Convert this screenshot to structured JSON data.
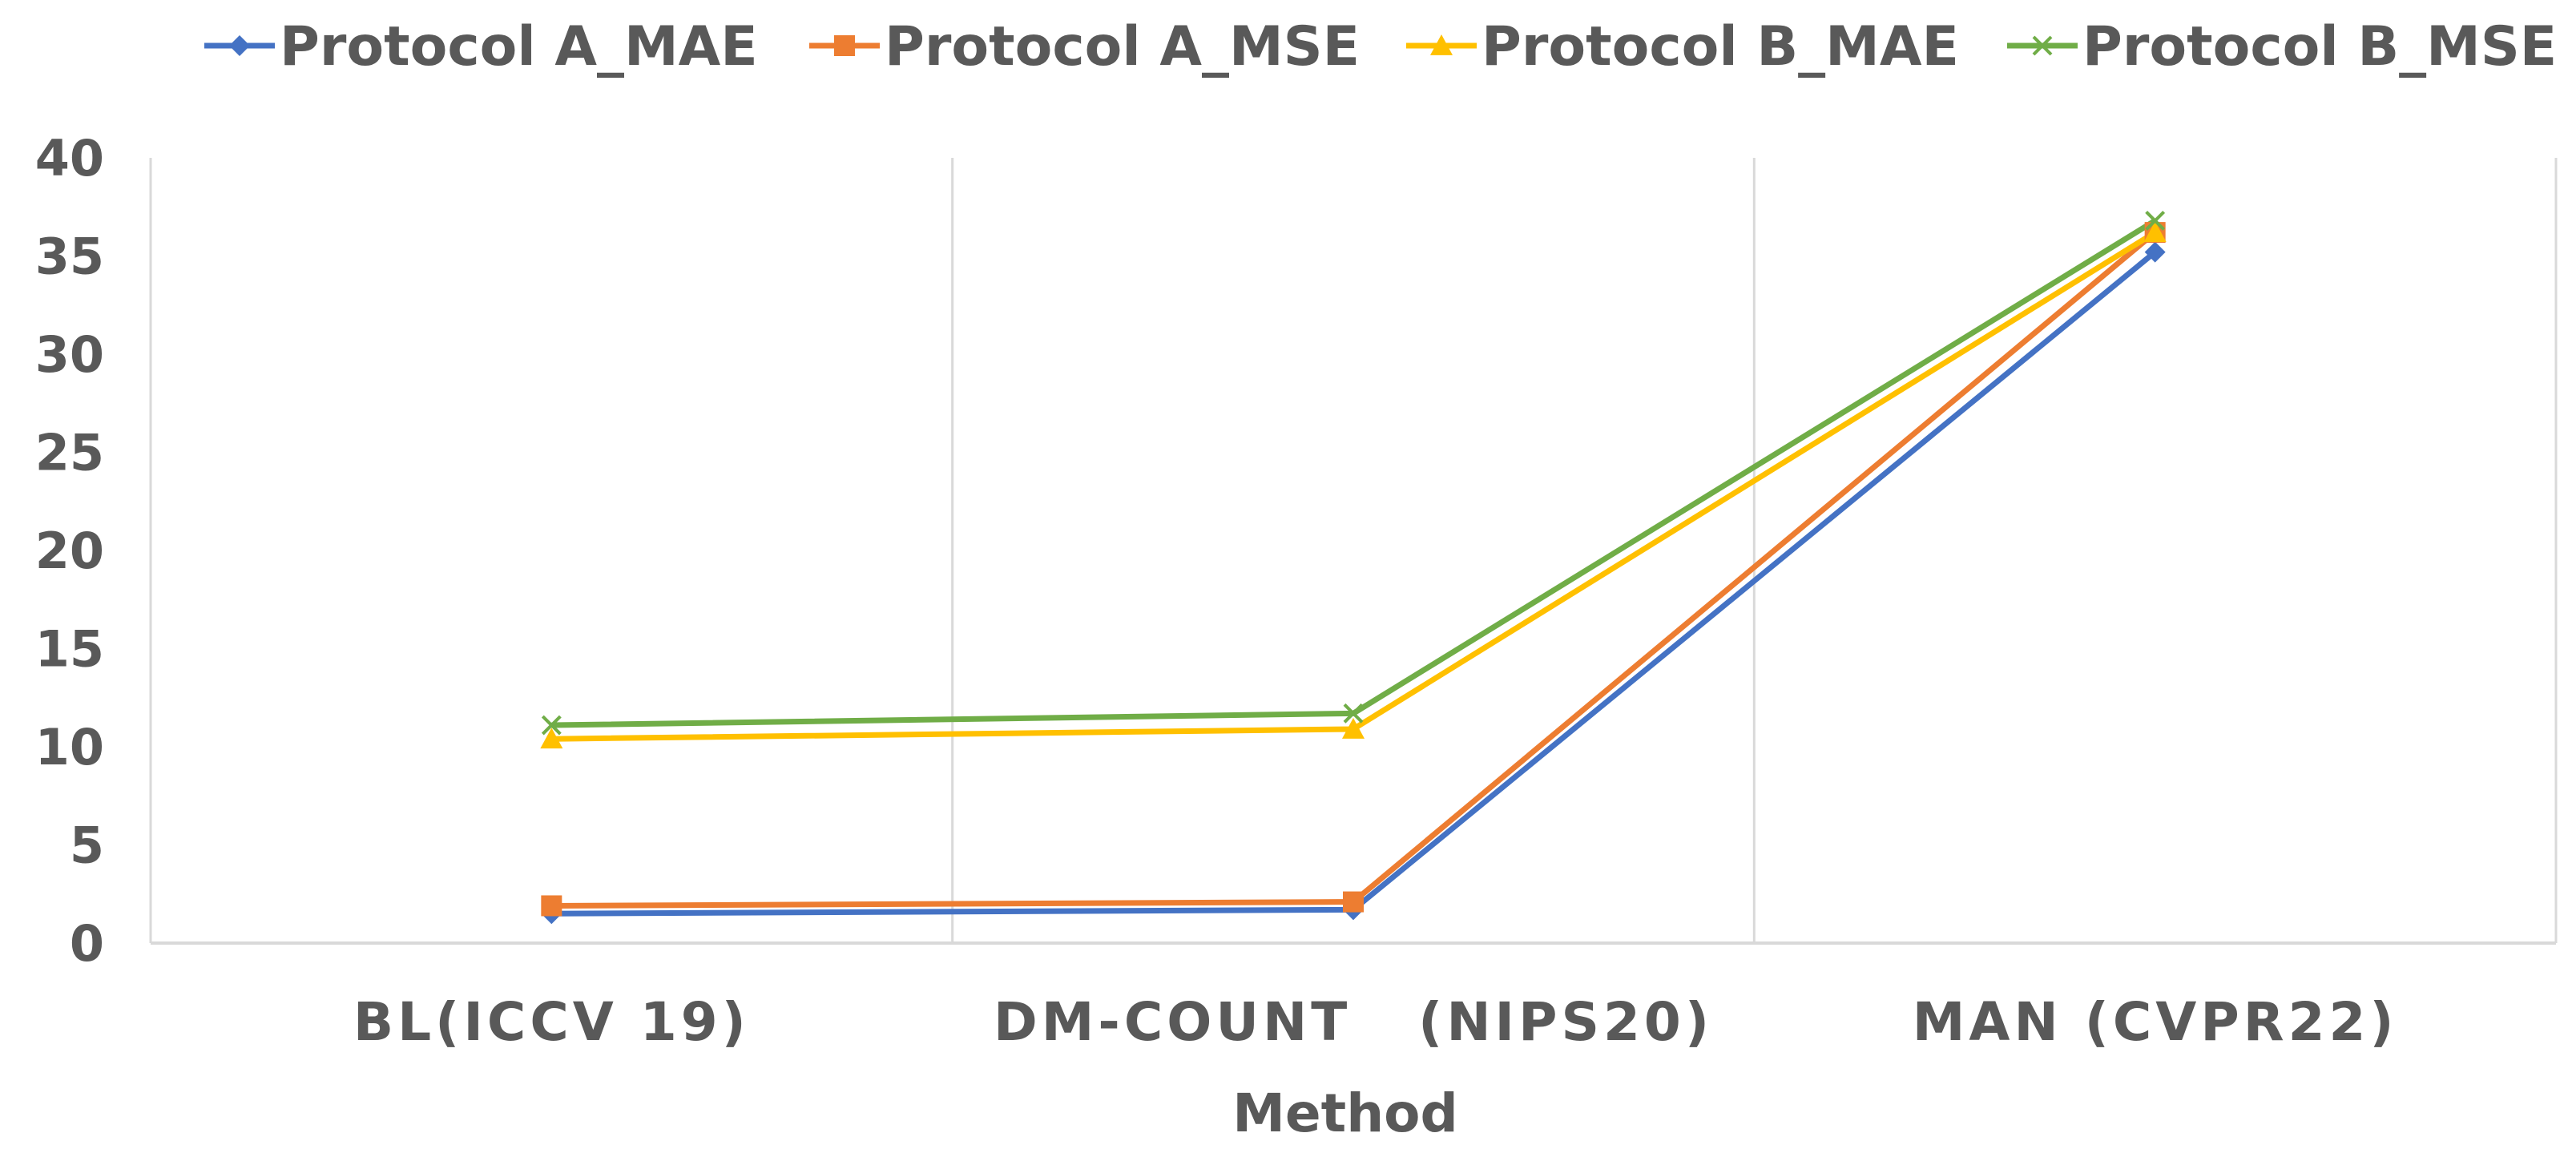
{
  "chart_data": {
    "type": "line",
    "title": "",
    "xlabel": "Method",
    "ylabel": "",
    "categories": [
      "BL(ICCV 19)",
      "DM-COUNT   (NIPS20)",
      "MAN (CVPR22)"
    ],
    "ylim": [
      0,
      40
    ],
    "yticks": [
      0,
      5,
      10,
      15,
      20,
      25,
      30,
      35,
      40
    ],
    "grid": "vertical category gridlines",
    "legend_position": "top",
    "series": [
      {
        "name": "Protocol A_MAE",
        "color": "#4472C4",
        "marker": "diamond",
        "values": [
          1.5,
          1.7,
          35.2
        ]
      },
      {
        "name": "Protocol A_MSE",
        "color": "#ED7D31",
        "marker": "square",
        "values": [
          1.9,
          2.1,
          36.2
        ]
      },
      {
        "name": "Protocol B_MAE",
        "color": "#FFC000",
        "marker": "triangle",
        "values": [
          10.4,
          10.9,
          36.2
        ]
      },
      {
        "name": "Protocol B_MSE",
        "color": "#70AD47",
        "marker": "x",
        "values": [
          11.1,
          11.7,
          36.8
        ]
      }
    ]
  }
}
